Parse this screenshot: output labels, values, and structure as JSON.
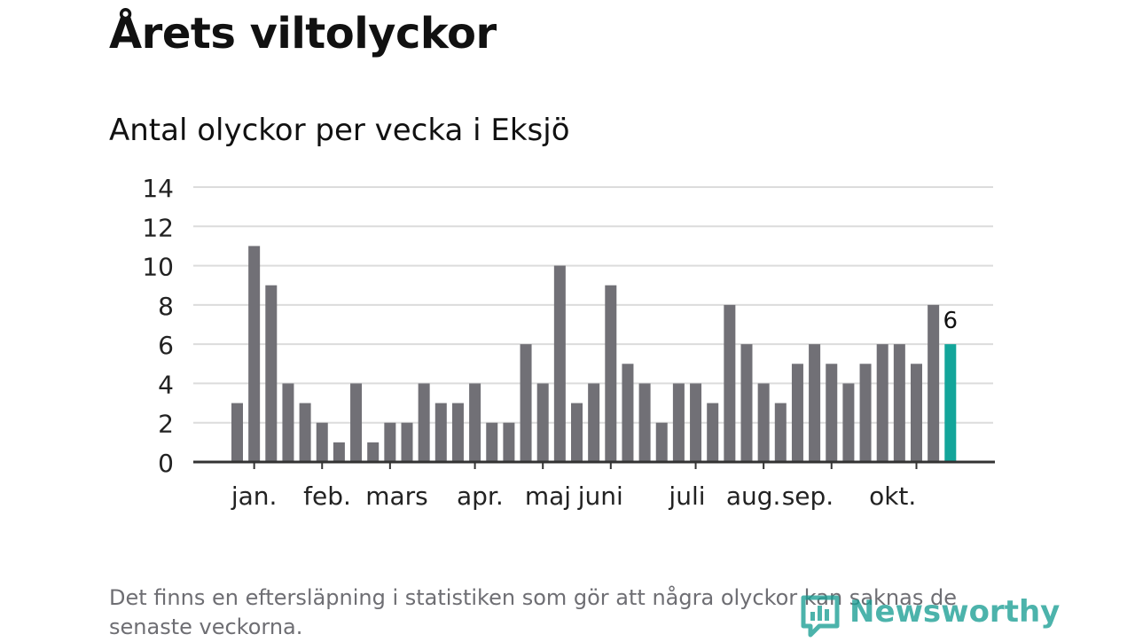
{
  "header": {
    "title": "Årets viltolyckor",
    "subtitle": "Antal olyckor per vecka i Eksjö"
  },
  "footer": {
    "note": "Det finns en eftersläpning i statistiken som gör att några olyckor kan saknas de senaste veckorna.",
    "brand": "Newsworthy"
  },
  "colors": {
    "bar": "#717076",
    "highlight": "#13a59a",
    "grid": "#dcdcdc",
    "axis": "#333333",
    "brand": "#1a9e94"
  },
  "icons": {
    "brand_logo": "newsworthy-logo-icon"
  },
  "chart_data": {
    "type": "bar",
    "title": "",
    "xlabel": "",
    "ylabel": "",
    "ylim": [
      0,
      14
    ],
    "yticks": [
      0,
      2,
      4,
      6,
      8,
      10,
      12,
      14
    ],
    "grid": true,
    "month_labels": [
      "jan.",
      "feb.",
      "mars",
      "apr.",
      "maj",
      "juni",
      "juli",
      "aug.",
      "sep.",
      "okt."
    ],
    "month_label_positions": [
      1,
      5.3,
      9.4,
      14.3,
      18.3,
      21.4,
      26.5,
      30.4,
      33.6,
      38.6
    ],
    "month_tick_positions": [
      1,
      5,
      9,
      14,
      18,
      22,
      27,
      31,
      35,
      40
    ],
    "values": [
      3,
      11,
      9,
      4,
      3,
      2,
      1,
      4,
      1,
      2,
      2,
      4,
      3,
      3,
      4,
      2,
      2,
      6,
      4,
      10,
      3,
      4,
      9,
      5,
      4,
      2,
      4,
      4,
      3,
      8,
      6,
      4,
      3,
      5,
      6,
      5,
      4,
      5,
      6,
      6,
      5,
      8,
      6
    ],
    "highlight_index": 42,
    "highlight_label": "6"
  }
}
